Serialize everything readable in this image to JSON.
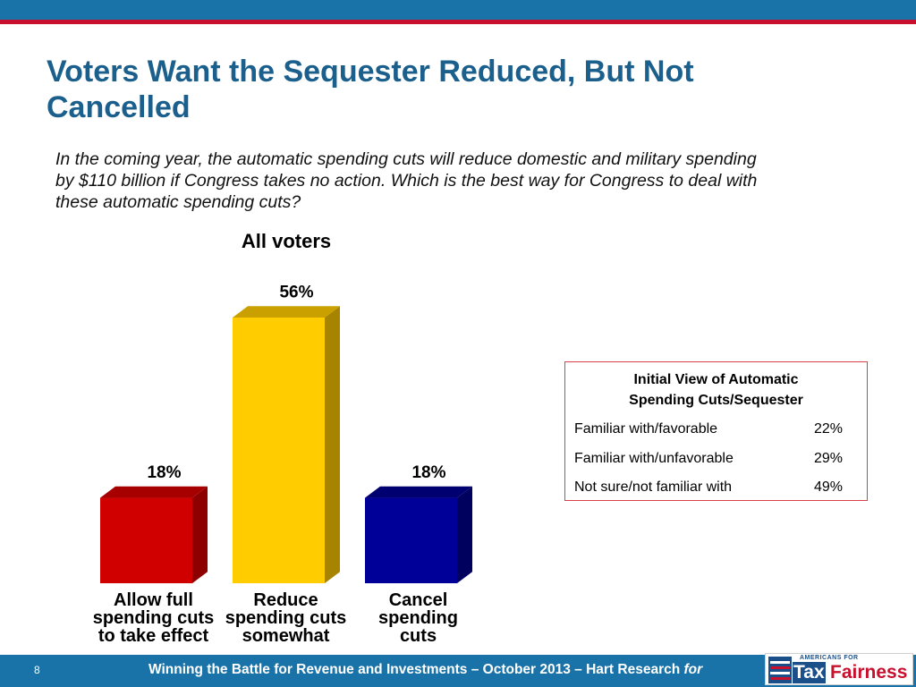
{
  "slide": {
    "title_line1": "Voters Want the Sequester Reduced, But Not",
    "title_line2": "Cancelled",
    "question_line1": "In the coming year, the automatic spending cuts will reduce domestic and military spending",
    "question_line2": "by $110 billion if Congress takes no action.  Which is the best way for Congress to deal with",
    "question_line3": "these automatic spending cuts?"
  },
  "chart_data": {
    "type": "bar",
    "title": "All voters",
    "categories": [
      [
        "Allow full",
        "spending cuts",
        "to take effect"
      ],
      [
        "Reduce",
        "spending cuts",
        "somewhat"
      ],
      [
        "Cancel",
        "spending",
        "cuts"
      ]
    ],
    "values": [
      18,
      56,
      18
    ],
    "value_labels": [
      "18%",
      "56%",
      "18%"
    ],
    "unit": "%",
    "ylim": [
      0,
      60
    ],
    "grid": false,
    "legend": "none",
    "colors": [
      "#d10000",
      "#ffcc00",
      "#000099"
    ],
    "side_colors": [
      "#8e0000",
      "#a68400",
      "#00005e"
    ],
    "top_colors": [
      "#a60000",
      "#c9a000",
      "#000070"
    ]
  },
  "inset": {
    "title_line1": "Initial View of Automatic",
    "title_line2": "Spending Cuts/Sequester",
    "rows": [
      {
        "label": "Familiar with/favorable",
        "value": "22%"
      },
      {
        "label": "Familiar with/unfavorable",
        "value": "29%"
      },
      {
        "label": "Not sure/not familiar with",
        "value": "49%"
      }
    ]
  },
  "footer": {
    "page_number": "8",
    "text": "Winning the Battle for Revenue and Investments – October 2013 – Hart Research",
    "text_italic": "for"
  },
  "logo": {
    "top_text": "AMERICANS FOR",
    "word1": "Tax",
    "word2": "Fairness"
  },
  "colors": {
    "brand_blue": "#1a73a8",
    "accent_red": "#c8102e",
    "title_blue": "#1b5f8c",
    "inset_border": "#d9404a"
  }
}
